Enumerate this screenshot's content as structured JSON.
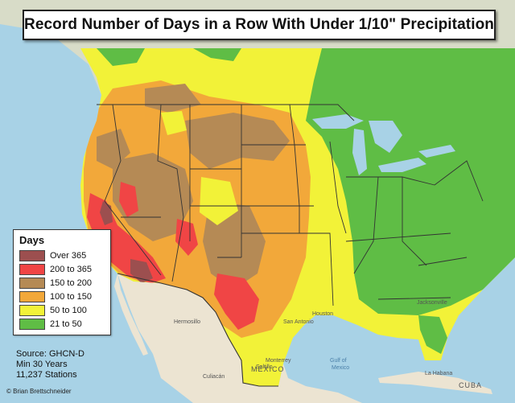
{
  "title": "Record Number of Days in a Row With Under 1/10\" Precipitation",
  "legend": {
    "title": "Days",
    "items": [
      {
        "label": "Over 365",
        "color": "#9c4f4f"
      },
      {
        "label": "200 to 365",
        "color": "#f04545"
      },
      {
        "label": "150 to 200",
        "color": "#b58a55"
      },
      {
        "label": "100 to 150",
        "color": "#f2a83a"
      },
      {
        "label": "50 to 100",
        "color": "#f2f238"
      },
      {
        "label": "21 to 50",
        "color": "#5fbd45"
      }
    ]
  },
  "source": {
    "line1": "Source: GHCN-D",
    "line2": "Min 30 Years",
    "line3": "11,237 Stations"
  },
  "credit": "© Brian Brettschneider",
  "places": {
    "mexico": "MÉXICO",
    "gulf_line1": "Gulf of",
    "gulf_line2": "Mexico",
    "hermosillo": "Hermosillo",
    "culiacan": "Culiacán",
    "monterrey": "Monterrey",
    "saltillo": "Saltillo",
    "san_antonio": "San Antonio",
    "houston": "Houston",
    "jacksonville": "Jacksonville",
    "cuba": "CUBA",
    "la_habana": "La Habana"
  }
}
